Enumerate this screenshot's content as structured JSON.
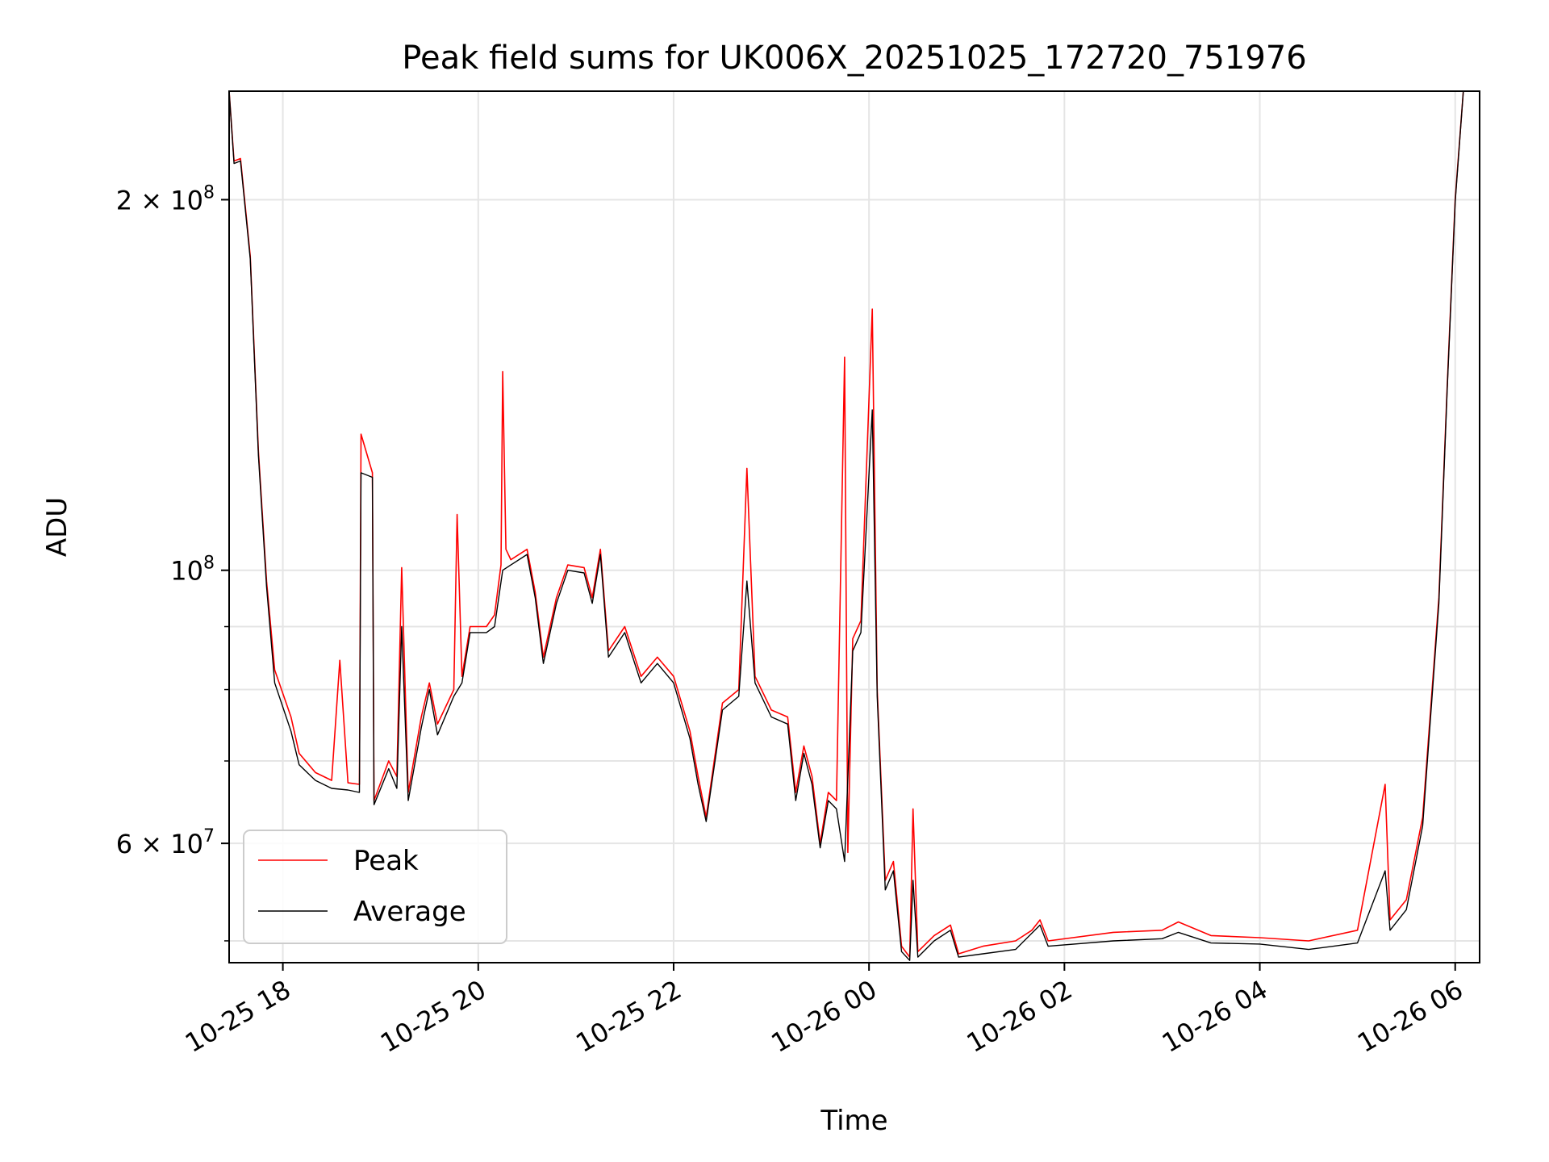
{
  "chart_data": {
    "type": "line",
    "title": "Peak field sums for UK006X_20251025_172720_751976",
    "xlabel": "Time",
    "ylabel": "ADU",
    "x_range": [
      "2025-10-25T17:27",
      "2025-10-26T06:15"
    ],
    "y_scale": "log",
    "ylim": [
      48000000,
      245000000
    ],
    "grid": true,
    "legend_position": "lower-left",
    "x_ticks": [
      {
        "t": "2025-10-25T18:00",
        "label": "10-25 18"
      },
      {
        "t": "2025-10-25T20:00",
        "label": "10-25 20"
      },
      {
        "t": "2025-10-25T22:00",
        "label": "10-25 22"
      },
      {
        "t": "2025-10-26T00:00",
        "label": "10-26 00"
      },
      {
        "t": "2025-10-26T02:00",
        "label": "10-26 02"
      },
      {
        "t": "2025-10-26T04:00",
        "label": "10-26 04"
      },
      {
        "t": "2025-10-26T06:00",
        "label": "10-26 06"
      }
    ],
    "y_major_ticks": [
      {
        "v": 60000000,
        "label": "6 × 10",
        "exp": "7"
      },
      {
        "v": 100000000,
        "label": "10",
        "exp": "8"
      },
      {
        "v": 200000000,
        "label": "2 × 10",
        "exp": "8"
      }
    ],
    "y_minor_gridlines": [
      50000000,
      70000000,
      80000000,
      90000000
    ],
    "series": [
      {
        "name": "Peak",
        "color": "#ff0000",
        "points": [
          [
            "2025-10-25T17:27",
            245000000
          ],
          [
            "2025-10-25T17:30",
            215000000
          ],
          [
            "2025-10-25T17:34",
            216000000
          ],
          [
            "2025-10-25T17:40",
            180000000
          ],
          [
            "2025-10-25T17:45",
            125000000
          ],
          [
            "2025-10-25T17:50",
            98000000
          ],
          [
            "2025-10-25T17:55",
            83000000
          ],
          [
            "2025-10-25T18:05",
            76000000
          ],
          [
            "2025-10-25T18:10",
            71000000
          ],
          [
            "2025-10-25T18:20",
            68500000
          ],
          [
            "2025-10-25T18:30",
            67500000
          ],
          [
            "2025-10-25T18:35",
            84500000
          ],
          [
            "2025-10-25T18:40",
            67200000
          ],
          [
            "2025-10-25T18:47",
            67000000
          ],
          [
            "2025-10-25T18:48",
            129000000
          ],
          [
            "2025-10-25T18:55",
            120000000
          ],
          [
            "2025-10-25T18:56",
            65000000
          ],
          [
            "2025-10-25T19:05",
            70000000
          ],
          [
            "2025-10-25T19:10",
            68000000
          ],
          [
            "2025-10-25T19:13",
            100500000
          ],
          [
            "2025-10-25T19:17",
            66000000
          ],
          [
            "2025-10-25T19:25",
            76000000
          ],
          [
            "2025-10-25T19:30",
            81000000
          ],
          [
            "2025-10-25T19:35",
            75000000
          ],
          [
            "2025-10-25T19:45",
            80000000
          ],
          [
            "2025-10-25T19:47",
            111000000
          ],
          [
            "2025-10-25T19:50",
            82000000
          ],
          [
            "2025-10-25T19:55",
            90000000
          ],
          [
            "2025-10-25T20:05",
            90000000
          ],
          [
            "2025-10-25T20:10",
            92000000
          ],
          [
            "2025-10-25T20:14",
            101000000
          ],
          [
            "2025-10-25T20:15",
            145000000
          ],
          [
            "2025-10-25T20:17",
            104000000
          ],
          [
            "2025-10-25T20:20",
            102000000
          ],
          [
            "2025-10-25T20:30",
            104000000
          ],
          [
            "2025-10-25T20:35",
            96000000
          ],
          [
            "2025-10-25T20:40",
            85000000
          ],
          [
            "2025-10-25T20:48",
            95000000
          ],
          [
            "2025-10-25T20:55",
            101000000
          ],
          [
            "2025-10-25T21:05",
            100500000
          ],
          [
            "2025-10-25T21:10",
            95000000
          ],
          [
            "2025-10-25T21:15",
            104000000
          ],
          [
            "2025-10-25T21:20",
            86000000
          ],
          [
            "2025-10-25T21:30",
            90000000
          ],
          [
            "2025-10-25T21:40",
            82000000
          ],
          [
            "2025-10-25T21:50",
            85000000
          ],
          [
            "2025-10-25T22:00",
            82000000
          ],
          [
            "2025-10-25T22:10",
            74000000
          ],
          [
            "2025-10-25T22:15",
            68000000
          ],
          [
            "2025-10-25T22:20",
            63000000
          ],
          [
            "2025-10-25T22:30",
            78000000
          ],
          [
            "2025-10-25T22:40",
            80000000
          ],
          [
            "2025-10-25T22:45",
            121000000
          ],
          [
            "2025-10-25T22:50",
            82000000
          ],
          [
            "2025-10-25T23:00",
            77000000
          ],
          [
            "2025-10-25T23:10",
            76000000
          ],
          [
            "2025-10-25T23:15",
            66000000
          ],
          [
            "2025-10-25T23:20",
            72000000
          ],
          [
            "2025-10-25T23:25",
            68000000
          ],
          [
            "2025-10-25T23:30",
            60000000
          ],
          [
            "2025-10-25T23:35",
            66000000
          ],
          [
            "2025-10-25T23:40",
            65000000
          ],
          [
            "2025-10-25T23:45",
            149000000
          ],
          [
            "2025-10-25T23:47",
            59000000
          ],
          [
            "2025-10-25T23:50",
            88000000
          ],
          [
            "2025-10-25T23:55",
            91000000
          ],
          [
            "2025-10-26T00:02",
            163000000
          ],
          [
            "2025-10-26T00:05",
            80000000
          ],
          [
            "2025-10-26T00:10",
            56000000
          ],
          [
            "2025-10-26T00:15",
            58000000
          ],
          [
            "2025-10-26T00:20",
            49500000
          ],
          [
            "2025-10-26T00:25",
            48500000
          ],
          [
            "2025-10-26T00:27",
            64000000
          ],
          [
            "2025-10-26T00:30",
            49000000
          ],
          [
            "2025-10-26T00:40",
            50500000
          ],
          [
            "2025-10-26T00:50",
            51500000
          ],
          [
            "2025-10-26T00:55",
            48800000
          ],
          [
            "2025-10-26T01:10",
            49500000
          ],
          [
            "2025-10-26T01:30",
            50000000
          ],
          [
            "2025-10-26T01:40",
            51000000
          ],
          [
            "2025-10-26T01:45",
            52000000
          ],
          [
            "2025-10-26T01:50",
            50000000
          ],
          [
            "2025-10-26T02:30",
            50800000
          ],
          [
            "2025-10-26T03:00",
            51000000
          ],
          [
            "2025-10-26T03:10",
            51800000
          ],
          [
            "2025-10-26T03:30",
            50500000
          ],
          [
            "2025-10-26T04:00",
            50300000
          ],
          [
            "2025-10-26T04:30",
            50000000
          ],
          [
            "2025-10-26T05:00",
            51000000
          ],
          [
            "2025-10-26T05:17",
            67000000
          ],
          [
            "2025-10-26T05:20",
            52000000
          ],
          [
            "2025-10-26T05:30",
            54000000
          ],
          [
            "2025-10-26T05:40",
            63000000
          ],
          [
            "2025-10-26T05:50",
            95000000
          ],
          [
            "2025-10-26T05:55",
            140000000
          ],
          [
            "2025-10-26T06:00",
            200000000
          ],
          [
            "2025-10-26T06:05",
            245000000
          ]
        ]
      },
      {
        "name": "Average",
        "color": "#000000",
        "points": [
          [
            "2025-10-25T17:27",
            245000000
          ],
          [
            "2025-10-25T17:30",
            214000000
          ],
          [
            "2025-10-25T17:34",
            215000000
          ],
          [
            "2025-10-25T17:40",
            179000000
          ],
          [
            "2025-10-25T17:45",
            124000000
          ],
          [
            "2025-10-25T17:50",
            97000000
          ],
          [
            "2025-10-25T17:55",
            81000000
          ],
          [
            "2025-10-25T18:05",
            74000000
          ],
          [
            "2025-10-25T18:10",
            69500000
          ],
          [
            "2025-10-25T18:20",
            67500000
          ],
          [
            "2025-10-25T18:30",
            66500000
          ],
          [
            "2025-10-25T18:40",
            66300000
          ],
          [
            "2025-10-25T18:47",
            66000000
          ],
          [
            "2025-10-25T18:48",
            120000000
          ],
          [
            "2025-10-25T18:55",
            119000000
          ],
          [
            "2025-10-25T18:56",
            64500000
          ],
          [
            "2025-10-25T19:05",
            69000000
          ],
          [
            "2025-10-25T19:10",
            66500000
          ],
          [
            "2025-10-25T19:13",
            90000000
          ],
          [
            "2025-10-25T19:17",
            65000000
          ],
          [
            "2025-10-25T19:25",
            74500000
          ],
          [
            "2025-10-25T19:30",
            80000000
          ],
          [
            "2025-10-25T19:35",
            73500000
          ],
          [
            "2025-10-25T19:45",
            79000000
          ],
          [
            "2025-10-25T19:50",
            81000000
          ],
          [
            "2025-10-25T19:55",
            89000000
          ],
          [
            "2025-10-25T20:05",
            89000000
          ],
          [
            "2025-10-25T20:10",
            90000000
          ],
          [
            "2025-10-25T20:15",
            100000000
          ],
          [
            "2025-10-25T20:20",
            101000000
          ],
          [
            "2025-10-25T20:30",
            103000000
          ],
          [
            "2025-10-25T20:35",
            95000000
          ],
          [
            "2025-10-25T20:40",
            84000000
          ],
          [
            "2025-10-25T20:48",
            94000000
          ],
          [
            "2025-10-25T20:55",
            100000000
          ],
          [
            "2025-10-25T21:05",
            99500000
          ],
          [
            "2025-10-25T21:10",
            94000000
          ],
          [
            "2025-10-25T21:15",
            103000000
          ],
          [
            "2025-10-25T21:20",
            85000000
          ],
          [
            "2025-10-25T21:30",
            89000000
          ],
          [
            "2025-10-25T21:40",
            81000000
          ],
          [
            "2025-10-25T21:50",
            84000000
          ],
          [
            "2025-10-25T22:00",
            81000000
          ],
          [
            "2025-10-25T22:10",
            73000000
          ],
          [
            "2025-10-25T22:15",
            67000000
          ],
          [
            "2025-10-25T22:20",
            62500000
          ],
          [
            "2025-10-25T22:30",
            77000000
          ],
          [
            "2025-10-25T22:40",
            79000000
          ],
          [
            "2025-10-25T22:45",
            98000000
          ],
          [
            "2025-10-25T22:50",
            81000000
          ],
          [
            "2025-10-25T23:00",
            76000000
          ],
          [
            "2025-10-25T23:10",
            75000000
          ],
          [
            "2025-10-25T23:15",
            65000000
          ],
          [
            "2025-10-25T23:20",
            71000000
          ],
          [
            "2025-10-25T23:25",
            67000000
          ],
          [
            "2025-10-25T23:30",
            59500000
          ],
          [
            "2025-10-25T23:35",
            65000000
          ],
          [
            "2025-10-25T23:40",
            64000000
          ],
          [
            "2025-10-25T23:45",
            58000000
          ],
          [
            "2025-10-25T23:50",
            86000000
          ],
          [
            "2025-10-25T23:55",
            89000000
          ],
          [
            "2025-10-26T00:02",
            135000000
          ],
          [
            "2025-10-26T00:05",
            79000000
          ],
          [
            "2025-10-26T00:10",
            55000000
          ],
          [
            "2025-10-26T00:15",
            57000000
          ],
          [
            "2025-10-26T00:20",
            49000000
          ],
          [
            "2025-10-26T00:25",
            48200000
          ],
          [
            "2025-10-26T00:27",
            56000000
          ],
          [
            "2025-10-26T00:30",
            48500000
          ],
          [
            "2025-10-26T00:40",
            50000000
          ],
          [
            "2025-10-26T00:50",
            51000000
          ],
          [
            "2025-10-26T00:55",
            48500000
          ],
          [
            "2025-10-26T01:10",
            48800000
          ],
          [
            "2025-10-26T01:30",
            49200000
          ],
          [
            "2025-10-26T01:45",
            51500000
          ],
          [
            "2025-10-26T01:50",
            49500000
          ],
          [
            "2025-10-26T02:30",
            50000000
          ],
          [
            "2025-10-26T03:00",
            50200000
          ],
          [
            "2025-10-26T03:10",
            50800000
          ],
          [
            "2025-10-26T03:30",
            49800000
          ],
          [
            "2025-10-26T04:00",
            49700000
          ],
          [
            "2025-10-26T04:30",
            49200000
          ],
          [
            "2025-10-26T05:00",
            49800000
          ],
          [
            "2025-10-26T05:17",
            57000000
          ],
          [
            "2025-10-26T05:20",
            51000000
          ],
          [
            "2025-10-26T05:30",
            53000000
          ],
          [
            "2025-10-26T05:40",
            62000000
          ],
          [
            "2025-10-26T05:50",
            94000000
          ],
          [
            "2025-10-26T05:55",
            139000000
          ],
          [
            "2025-10-26T06:00",
            199000000
          ],
          [
            "2025-10-26T06:05",
            245000000
          ]
        ]
      }
    ]
  }
}
